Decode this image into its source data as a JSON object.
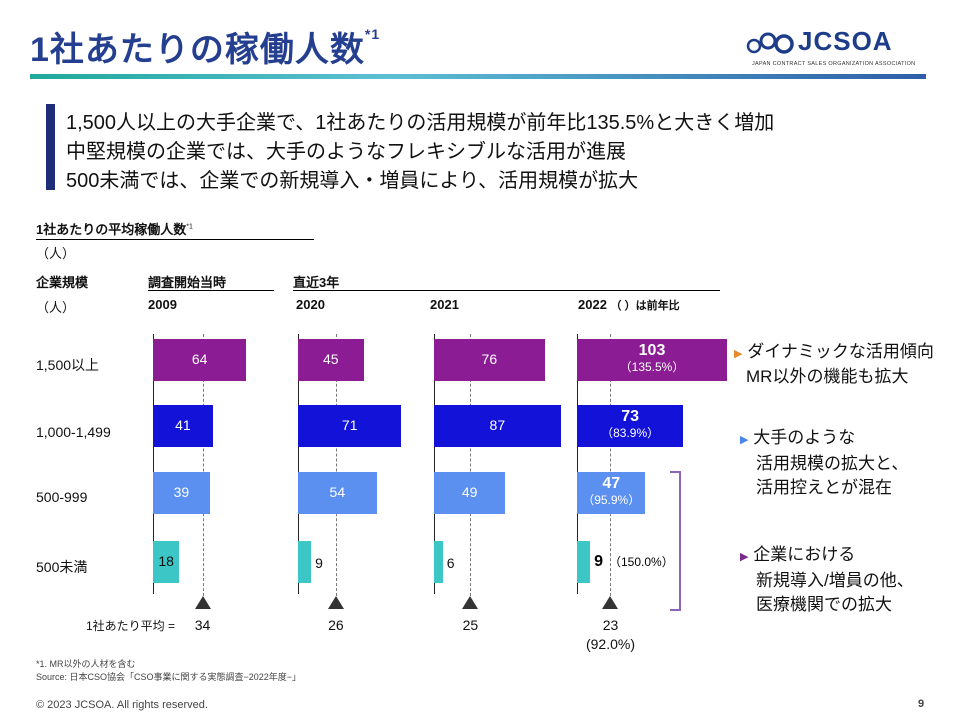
{
  "title": "1社あたりの稼働人数",
  "title_sup": "*1",
  "logo": {
    "text": "JCSOA",
    "sub": "JAPAN CONTRACT SALES ORGANIZATION ASSOCIATION"
  },
  "summary": [
    "1,500人以上の大手企業で、1社あたりの活用規模が前年比135.5%と大きく増加",
    "中堅規模の企業では、大手のようなフレキシブルな活用が進展",
    "500未満では、企業での新規導入・増員により、活用規模が拡大"
  ],
  "chart_data": {
    "type": "bar",
    "title": "1社あたりの平均稼働人数",
    "title_sup": "*1",
    "unit": "（人）",
    "row_header_label": "企業規模",
    "row_header_unit": "（人）",
    "group_headers": [
      "調査開始当時",
      "直近3年"
    ],
    "year_note": "（ ）は前年比",
    "categories": [
      "1,500以上",
      "1,000-1,499",
      "500-999",
      "500未満"
    ],
    "series": [
      {
        "name": "2009",
        "values": [
          64,
          41,
          39,
          18
        ],
        "ratios": [
          "",
          "",
          "",
          ""
        ]
      },
      {
        "name": "2020",
        "values": [
          45,
          71,
          54,
          9
        ],
        "ratios": [
          "",
          "",
          "",
          ""
        ]
      },
      {
        "name": "2021",
        "values": [
          76,
          87,
          49,
          6
        ],
        "ratios": [
          "",
          "",
          "",
          ""
        ]
      },
      {
        "name": "2022",
        "values": [
          103,
          73,
          47,
          9
        ],
        "ratios": [
          "（135.5%）",
          "（83.9%）",
          "（95.9%）",
          "（150.0%）"
        ]
      }
    ],
    "averages": [
      34,
      26,
      25,
      23
    ],
    "average_ratio_2022": "(92.0%)",
    "average_label": "1社あたり平均 =",
    "colors": [
      "#8b1c94",
      "#1212d8",
      "#5b8ff0",
      "#3cc6c6"
    ],
    "xlim": [
      0,
      103
    ]
  },
  "notes": [
    {
      "marker": "▶",
      "color": "#e8892b",
      "lines": [
        "ダイナミックな活用傾向",
        "MR以外の機能も拡大"
      ]
    },
    {
      "marker": "▶",
      "color": "#4a86e8",
      "lines": [
        "大手のような",
        "活用規模の拡大と、",
        "活用控えとが混在"
      ]
    },
    {
      "marker": "▶",
      "color": "#7b2a8c",
      "lines": [
        "企業における",
        "新規導入/増員の他、",
        "医療機関での拡大"
      ]
    }
  ],
  "bracket_colors": [
    "#4a86e8",
    "#8e63b8"
  ],
  "footnotes": [
    "*1. MR以外の人材を含む",
    "Source: 日本CSO協会「CSO事業に関する実態調査−2022年度−」"
  ],
  "copyright": "© 2023 JCSOA. All rights reserved.",
  "page_number": "9"
}
